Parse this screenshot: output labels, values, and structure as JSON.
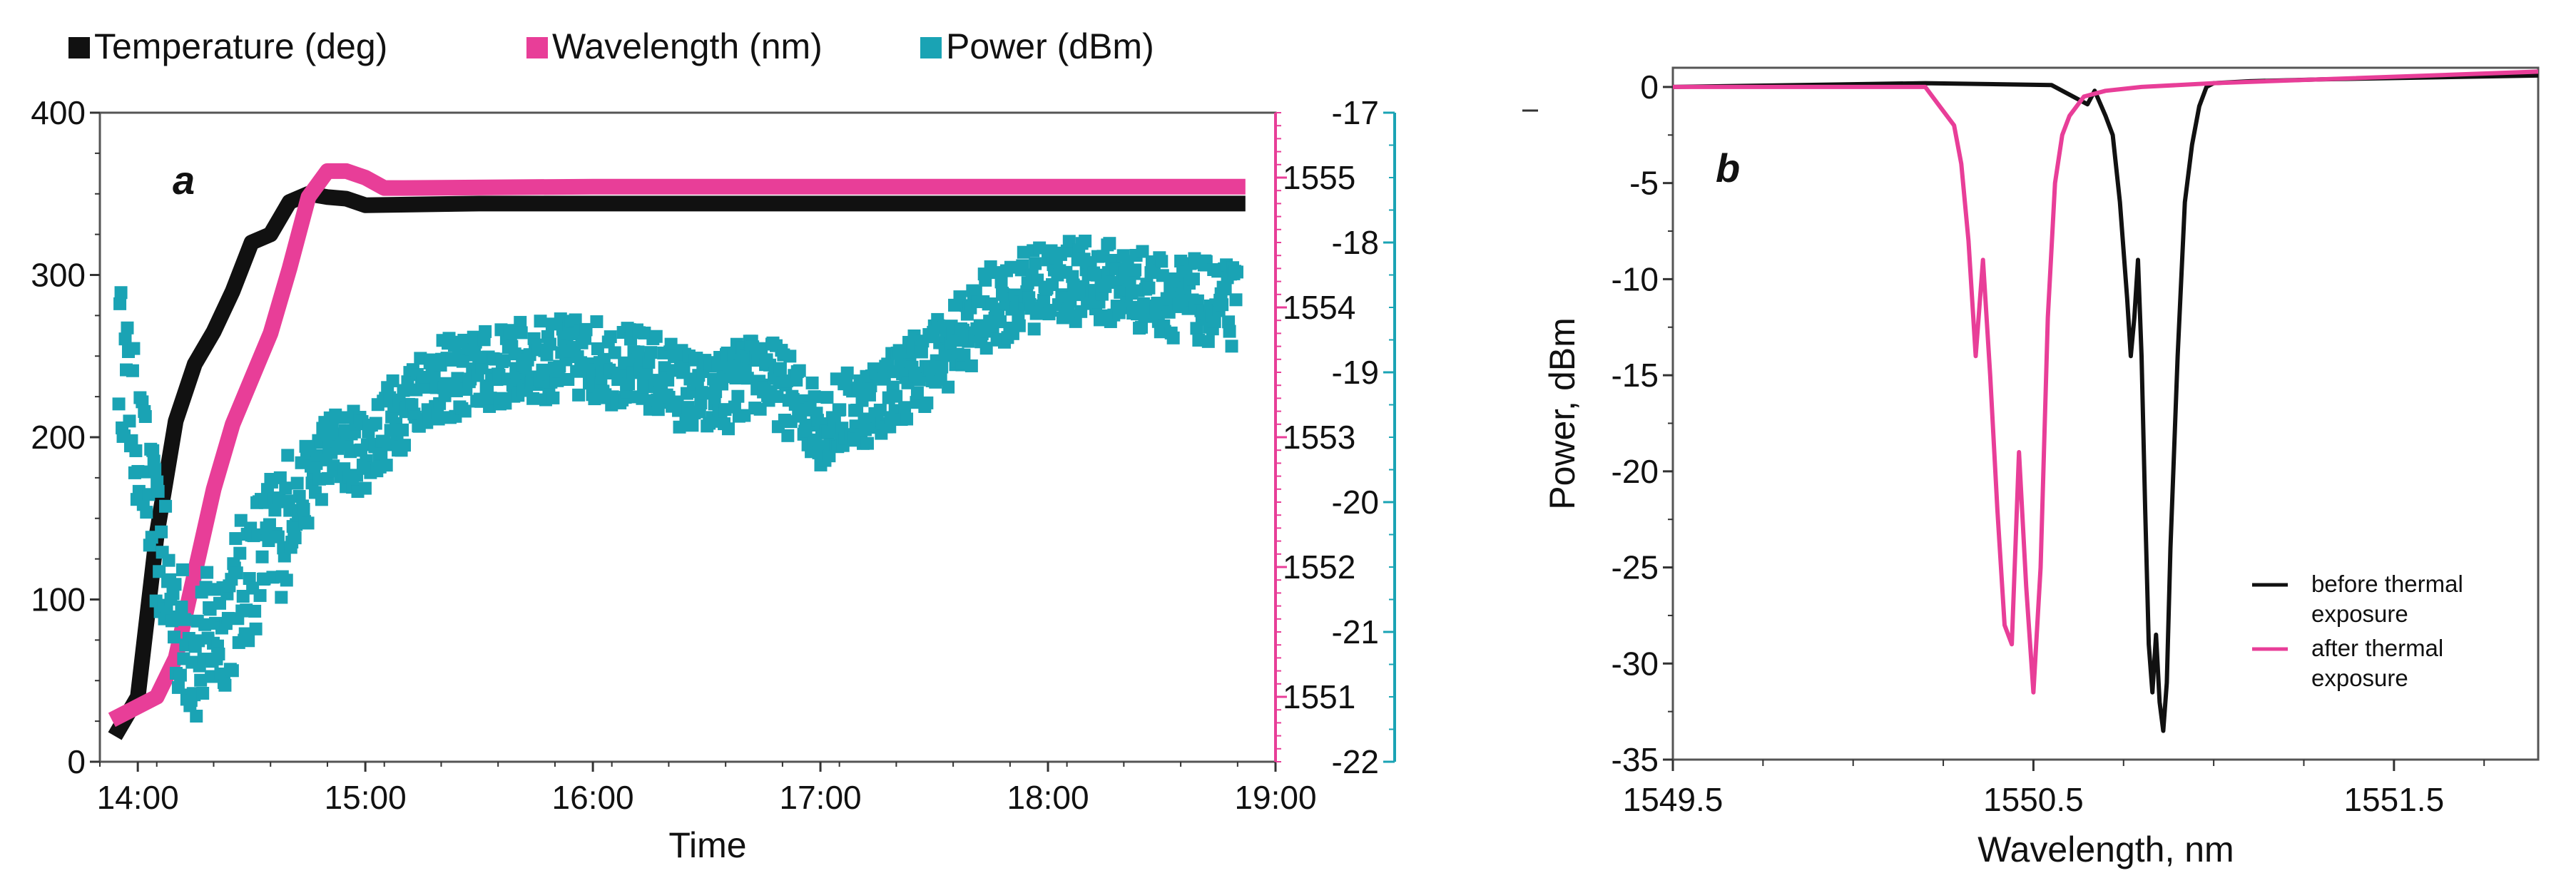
{
  "chart_data": [
    {
      "panel": "a",
      "type": "scatter",
      "xlabel": "Time",
      "x_ticks": [
        "14:00",
        "15:00",
        "16:00",
        "17:00",
        "18:00",
        "19:00"
      ],
      "xlim": [
        "13:50",
        "19:00"
      ],
      "legend_position": "top",
      "axes": {
        "left": {
          "ylim": [
            0,
            400
          ],
          "ticks": [
            "0",
            "100",
            "200",
            "300",
            "400"
          ],
          "color": "#111111"
        },
        "right_inner": {
          "ylim": [
            1550.5,
            1555.5
          ],
          "ticks": [
            "1551",
            "1552",
            "1553",
            "1554",
            "1555"
          ],
          "color": "#e83e98"
        },
        "right_outer": {
          "ylim": [
            -22,
            -17
          ],
          "ticks": [
            "-22",
            "-21",
            "-20",
            "-19",
            "-18",
            "-17"
          ],
          "color": "#1aa3b4"
        }
      },
      "series": [
        {
          "name": "Temperature (deg)",
          "axis": "left",
          "color": "#111111",
          "x": [
            "13:55",
            "14:00",
            "14:05",
            "14:10",
            "14:15",
            "14:20",
            "14:25",
            "14:30",
            "14:35",
            "14:40",
            "14:45",
            "14:50",
            "14:55",
            "15:00",
            "15:30",
            "16:00",
            "17:00",
            "18:00",
            "18:50"
          ],
          "values": [
            20,
            40,
            140,
            210,
            245,
            265,
            290,
            320,
            325,
            345,
            350,
            348,
            347,
            343,
            344,
            344,
            344,
            344,
            344
          ]
        },
        {
          "name": "Wavelength (nm)",
          "axis": "right_inner",
          "color": "#e83e98",
          "x": [
            "13:55",
            "14:05",
            "14:10",
            "14:15",
            "14:20",
            "14:25",
            "14:30",
            "14:35",
            "14:40",
            "14:45",
            "14:50",
            "14:55",
            "15:00",
            "15:05",
            "15:10",
            "16:00",
            "17:00",
            "18:00",
            "18:50"
          ],
          "values": [
            1550.85,
            1551.0,
            1551.3,
            1551.95,
            1552.6,
            1553.1,
            1553.45,
            1553.8,
            1554.3,
            1554.85,
            1555.05,
            1555.05,
            1555.0,
            1554.92,
            1554.92,
            1554.93,
            1554.93,
            1554.93,
            1554.93
          ]
        },
        {
          "name": "Power (dBm)",
          "axis": "right_outer",
          "color": "#1aa3b4",
          "x": [
            "13:55",
            "14:00",
            "14:05",
            "14:10",
            "14:15",
            "14:20",
            "14:25",
            "14:30",
            "14:40",
            "14:50",
            "15:00",
            "15:15",
            "15:30",
            "15:45",
            "16:00",
            "16:15",
            "16:30",
            "16:45",
            "17:00",
            "17:15",
            "17:30",
            "17:45",
            "18:00",
            "18:15",
            "18:30",
            "18:50"
          ],
          "values": [
            -18.8,
            -19.5,
            -20.3,
            -20.9,
            -21.2,
            -21.0,
            -20.8,
            -20.5,
            -20.1,
            -19.6,
            -19.6,
            -19.1,
            -19.0,
            -18.9,
            -18.9,
            -19.0,
            -19.2,
            -19.0,
            -19.4,
            -19.2,
            -18.9,
            -18.5,
            -18.3,
            -18.3,
            -18.4,
            -18.5
          ]
        }
      ]
    },
    {
      "panel": "b",
      "type": "line",
      "xlabel": "Wavelength, nm",
      "ylabel": "Power, dBm",
      "xlim": [
        1549.5,
        1551.9
      ],
      "ylim": [
        -35,
        1
      ],
      "x_ticks": [
        "1549.5",
        "1550.5",
        "1551.5"
      ],
      "y_ticks": [
        "0",
        "-5",
        "-10",
        "-15",
        "-20",
        "-25",
        "-30",
        "-35"
      ],
      "legend_position": "bottom-right",
      "grid": false,
      "series": [
        {
          "name": "before thermal exposure",
          "color": "#111111",
          "x": [
            1549.5,
            1550.2,
            1550.55,
            1550.6,
            1550.65,
            1550.67,
            1550.7,
            1550.72,
            1550.74,
            1550.76,
            1550.77,
            1550.78,
            1550.79,
            1550.8,
            1550.81,
            1550.82,
            1550.83,
            1550.84,
            1550.85,
            1550.86,
            1550.87,
            1550.88,
            1550.9,
            1550.92,
            1550.94,
            1550.96,
            1550.98,
            1551.0,
            1551.1,
            1551.3,
            1551.9
          ],
          "values": [
            0.0,
            0.2,
            0.1,
            -0.4,
            -0.9,
            -0.2,
            -1.5,
            -2.5,
            -6.0,
            -11.0,
            -14.0,
            -12.0,
            -9.0,
            -14.0,
            -22.0,
            -29.0,
            -31.5,
            -28.5,
            -32.0,
            -33.5,
            -31.0,
            -24.0,
            -14.0,
            -6.0,
            -3.0,
            -1.0,
            0.0,
            0.2,
            0.3,
            0.4,
            0.6
          ]
        },
        {
          "name": "after thermal exposure",
          "color": "#e83e98",
          "x": [
            1549.5,
            1550.2,
            1550.22,
            1550.24,
            1550.28,
            1550.3,
            1550.32,
            1550.34,
            1550.36,
            1550.38,
            1550.4,
            1550.42,
            1550.44,
            1550.46,
            1550.48,
            1550.5,
            1550.52,
            1550.54,
            1550.56,
            1550.58,
            1550.6,
            1550.62,
            1550.64,
            1550.7,
            1550.8,
            1551.0,
            1551.9
          ],
          "values": [
            0.0,
            0.0,
            -0.5,
            -1.0,
            -2.0,
            -4.0,
            -8.0,
            -14.0,
            -9.0,
            -15.0,
            -22.0,
            -28.0,
            -29.0,
            -19.0,
            -26.0,
            -31.5,
            -25.0,
            -12.0,
            -5.0,
            -2.5,
            -1.5,
            -1.0,
            -0.5,
            -0.2,
            0.0,
            0.2,
            0.8
          ]
        }
      ]
    }
  ]
}
